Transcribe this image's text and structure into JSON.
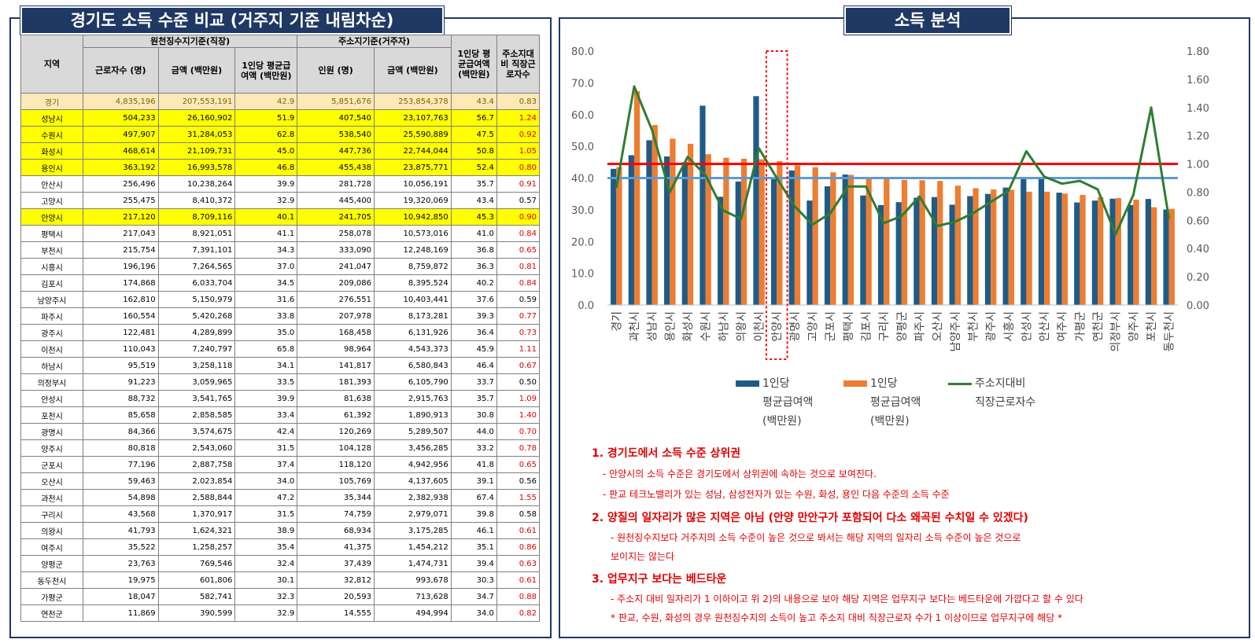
{
  "left": {
    "title": "경기도 소득 수준 비교 (거주지 기준 내림차순)",
    "headers": {
      "region": "지역",
      "group1": "원천징수지기준(직장)",
      "group2": "주소지기준(거주자)",
      "workers": "근로자수 (명)",
      "amount1": "금액 (백만원)",
      "avg1": "1인당 평균급여액 (백만원)",
      "people": "인원 (명)",
      "amount2": "금액 (백만원)",
      "avg2": "1인당 평균급여액 (백만원)",
      "ratio": "주소지대비 직장근로자수"
    },
    "rows": [
      {
        "r": "경기",
        "a": "4,835,196",
        "b": "207,553,191",
        "c": "42.9",
        "d": "5,851,676",
        "e": "253,854,378",
        "f": "43.4",
        "g": "0.83",
        "hl": "avg"
      },
      {
        "r": "성남시",
        "a": "504,233",
        "b": "26,160,902",
        "c": "51.9",
        "d": "407,540",
        "e": "23,107,763",
        "f": "56.7",
        "g": "1.24",
        "hl": "y"
      },
      {
        "r": "수원시",
        "a": "497,907",
        "b": "31,284,053",
        "c": "62.8",
        "d": "538,540",
        "e": "25,590,889",
        "f": "47.5",
        "g": "0.92",
        "hl": "y"
      },
      {
        "r": "화성시",
        "a": "468,614",
        "b": "21,109,731",
        "c": "45.0",
        "d": "447,736",
        "e": "22,744,044",
        "f": "50.8",
        "g": "1.05",
        "hl": "y"
      },
      {
        "r": "용인시",
        "a": "363,192",
        "b": "16,993,578",
        "c": "46.8",
        "d": "455,438",
        "e": "23,875,771",
        "f": "52.4",
        "g": "0.80",
        "hl": "y"
      },
      {
        "r": "안산시",
        "a": "256,496",
        "b": "10,238,264",
        "c": "39.9",
        "d": "281,728",
        "e": "10,056,191",
        "f": "35.7",
        "g": "0.91",
        "hl": ""
      },
      {
        "r": "고양시",
        "a": "255,475",
        "b": "8,410,372",
        "c": "32.9",
        "d": "445,400",
        "e": "19,320,069",
        "f": "43.4",
        "g": "0.57",
        "hl": ""
      },
      {
        "r": "안양시",
        "a": "217,120",
        "b": "8,709,116",
        "c": "40.1",
        "d": "241,705",
        "e": "10,942,850",
        "f": "45.3",
        "g": "0.90",
        "hl": "y"
      },
      {
        "r": "평택시",
        "a": "217,043",
        "b": "8,921,051",
        "c": "41.1",
        "d": "258,078",
        "e": "10,573,016",
        "f": "41.0",
        "g": "0.84",
        "hl": ""
      },
      {
        "r": "부천시",
        "a": "215,754",
        "b": "7,391,101",
        "c": "34.3",
        "d": "333,090",
        "e": "12,248,169",
        "f": "36.8",
        "g": "0.65",
        "hl": ""
      },
      {
        "r": "시흥시",
        "a": "196,196",
        "b": "7,264,565",
        "c": "37.0",
        "d": "241,047",
        "e": "8,759,872",
        "f": "36.3",
        "g": "0.81",
        "hl": ""
      },
      {
        "r": "김포시",
        "a": "174,868",
        "b": "6,033,704",
        "c": "34.5",
        "d": "209,086",
        "e": "8,395,524",
        "f": "40.2",
        "g": "0.84",
        "hl": ""
      },
      {
        "r": "남양주시",
        "a": "162,810",
        "b": "5,150,979",
        "c": "31.6",
        "d": "276,551",
        "e": "10,403,441",
        "f": "37.6",
        "g": "0.59",
        "hl": ""
      },
      {
        "r": "파주시",
        "a": "160,554",
        "b": "5,420,268",
        "c": "33.8",
        "d": "207,978",
        "e": "8,173,281",
        "f": "39.3",
        "g": "0.77",
        "hl": ""
      },
      {
        "r": "광주시",
        "a": "122,481",
        "b": "4,289,899",
        "c": "35.0",
        "d": "168,458",
        "e": "6,131,926",
        "f": "36.4",
        "g": "0.73",
        "hl": ""
      },
      {
        "r": "이천시",
        "a": "110,043",
        "b": "7,240,797",
        "c": "65.8",
        "d": "98,964",
        "e": "4,543,373",
        "f": "45.9",
        "g": "1.11",
        "hl": ""
      },
      {
        "r": "하남시",
        "a": "95,519",
        "b": "3,258,118",
        "c": "34.1",
        "d": "141,817",
        "e": "6,580,843",
        "f": "46.4",
        "g": "0.67",
        "hl": ""
      },
      {
        "r": "의정부시",
        "a": "91,223",
        "b": "3,059,965",
        "c": "33.5",
        "d": "181,393",
        "e": "6,105,790",
        "f": "33.7",
        "g": "0.50",
        "hl": ""
      },
      {
        "r": "안성시",
        "a": "88,732",
        "b": "3,541,765",
        "c": "39.9",
        "d": "81,638",
        "e": "2,915,763",
        "f": "35.7",
        "g": "1.09",
        "hl": ""
      },
      {
        "r": "포천시",
        "a": "85,658",
        "b": "2,858,585",
        "c": "33.4",
        "d": "61,392",
        "e": "1,890,913",
        "f": "30.8",
        "g": "1.40",
        "hl": ""
      },
      {
        "r": "광명시",
        "a": "84,366",
        "b": "3,574,675",
        "c": "42.4",
        "d": "120,269",
        "e": "5,289,507",
        "f": "44.0",
        "g": "0.70",
        "hl": ""
      },
      {
        "r": "양주시",
        "a": "80,818",
        "b": "2,543,060",
        "c": "31.5",
        "d": "104,128",
        "e": "3,456,285",
        "f": "33.2",
        "g": "0.78",
        "hl": ""
      },
      {
        "r": "군포시",
        "a": "77,196",
        "b": "2,887,758",
        "c": "37.4",
        "d": "118,120",
        "e": "4,942,956",
        "f": "41.8",
        "g": "0.65",
        "hl": ""
      },
      {
        "r": "오산시",
        "a": "59,463",
        "b": "2,023,854",
        "c": "34.0",
        "d": "105,769",
        "e": "4,137,605",
        "f": "39.1",
        "g": "0.56",
        "hl": ""
      },
      {
        "r": "과천시",
        "a": "54,898",
        "b": "2,588,844",
        "c": "47.2",
        "d": "35,344",
        "e": "2,382,938",
        "f": "67.4",
        "g": "1.55",
        "hl": ""
      },
      {
        "r": "구리시",
        "a": "43,568",
        "b": "1,370,917",
        "c": "31.5",
        "d": "74,759",
        "e": "2,979,071",
        "f": "39.8",
        "g": "0.58",
        "hl": ""
      },
      {
        "r": "의왕시",
        "a": "41,793",
        "b": "1,624,321",
        "c": "38.9",
        "d": "68,934",
        "e": "3,175,285",
        "f": "46.1",
        "g": "0.61",
        "hl": ""
      },
      {
        "r": "여주시",
        "a": "35,522",
        "b": "1,258,257",
        "c": "35.4",
        "d": "41,375",
        "e": "1,454,212",
        "f": "35.1",
        "g": "0.86",
        "hl": ""
      },
      {
        "r": "양평군",
        "a": "23,763",
        "b": "769,546",
        "c": "32.4",
        "d": "37,439",
        "e": "1,474,731",
        "f": "39.4",
        "g": "0.63",
        "hl": ""
      },
      {
        "r": "동두천시",
        "a": "19,975",
        "b": "601,806",
        "c": "30.1",
        "d": "32,812",
        "e": "993,678",
        "f": "30.3",
        "g": "0.61",
        "hl": ""
      },
      {
        "r": "가평군",
        "a": "18,047",
        "b": "582,741",
        "c": "32.3",
        "d": "20,593",
        "e": "713,628",
        "f": "34.7",
        "g": "0.88",
        "hl": ""
      },
      {
        "r": "연천군",
        "a": "11,869",
        "b": "390,599",
        "c": "32.9",
        "d": "14,555",
        "e": "494,994",
        "f": "34.0",
        "g": "0.82",
        "hl": ""
      }
    ]
  },
  "right": {
    "title": "소득 분석",
    "legend": {
      "bar1": [
        "1인당",
        "평균급여액",
        "(백만원)"
      ],
      "bar2": [
        "1인당",
        "평균급여액",
        "(백만원)"
      ],
      "line": [
        "주소지대비",
        "직장근로자수"
      ]
    },
    "notes": [
      {
        "type": "h",
        "text": "1. 경기도에서 소득 수준 상위권"
      },
      {
        "type": "l",
        "text": "- 안양시의 소득 수준은 경기도에서 상위권에 속하는 것으로 보여진다."
      },
      {
        "type": "l",
        "text": "- 판교 테크노밸리가 있는 성남, 삼성전자가 있는 수원, 화성, 용인 다음 수준의 소득 수준"
      },
      {
        "type": "h",
        "text": "2. 양질의 일자리가 많은 지역은 아님 (안양 만안구가 포함되어 다소 왜곡된 수치일 수 있겠다)"
      },
      {
        "type": "l2",
        "text": "- 원천징수지보다 거주지의 소득 수준이 높은 것으로 봐서는 해당 지역의 일자리 소득 수준이 높은 것으로"
      },
      {
        "type": "l2",
        "text": "보이지는 않는다"
      },
      {
        "type": "h",
        "text": "3. 업무지구 보다는 베드타운"
      },
      {
        "type": "l2",
        "text": "- 주소지 대비 일자리가 1 이하이고 위 2)의 내용으로 보아 해당 지역은 업무지구 보다는 베드타운에 가깝다고 할 수 있다"
      },
      {
        "type": "l2",
        "text": "* 판교, 수원, 화성의 경우 원천징수지의 소득이 높고 주소지 대비 직장근로자 수가 1 이상이므로 업무지구에 해당 *"
      }
    ]
  },
  "colors": {
    "bar1": "#1f5b86",
    "bar2": "#ed7d31",
    "line": "#2e7d32",
    "redline": "#ff0000",
    "blueline": "#5b9bd5",
    "header": "#1f3864"
  },
  "chart_data": {
    "type": "bar",
    "categories": [
      "경기",
      "과천시",
      "성남시",
      "용인시",
      "화성시",
      "수원시",
      "하남시",
      "의왕시",
      "이천시",
      "안양시",
      "광명시",
      "고양시",
      "군포시",
      "평택시",
      "김포시",
      "구리시",
      "양평군",
      "파주시",
      "오산시",
      "남양주시",
      "부천시",
      "광주시",
      "시흥시",
      "안성시",
      "안산시",
      "여주시",
      "가평군",
      "연천군",
      "의정부시",
      "양주시",
      "포천시",
      "동두천시"
    ],
    "series": [
      {
        "name": "1인당 평균급여액 (백만원)",
        "axis": "left",
        "values": [
          42.9,
          47.2,
          51.9,
          46.8,
          45.0,
          62.8,
          34.1,
          38.9,
          65.8,
          40.1,
          42.4,
          32.9,
          37.4,
          41.1,
          34.5,
          31.5,
          32.4,
          33.8,
          34.0,
          31.6,
          34.3,
          35.0,
          37.0,
          39.9,
          39.9,
          35.4,
          32.3,
          32.9,
          33.5,
          31.5,
          33.4,
          30.1
        ]
      },
      {
        "name": "1인당 평균급여액 (백만원)",
        "axis": "left",
        "values": [
          43.4,
          67.4,
          56.7,
          52.4,
          50.8,
          47.5,
          46.4,
          46.1,
          45.9,
          45.3,
          44.0,
          43.4,
          41.8,
          41.0,
          40.2,
          39.8,
          39.4,
          39.3,
          39.1,
          37.6,
          36.8,
          36.4,
          36.3,
          35.7,
          35.7,
          35.1,
          34.7,
          34.0,
          33.7,
          33.2,
          30.8,
          30.3
        ]
      },
      {
        "name": "주소지대비 직장근로자수",
        "axis": "right",
        "type": "line",
        "values": [
          0.83,
          1.55,
          1.24,
          0.8,
          1.05,
          0.92,
          0.67,
          0.61,
          1.11,
          0.9,
          0.7,
          0.57,
          0.65,
          0.84,
          0.84,
          0.58,
          0.63,
          0.77,
          0.56,
          0.59,
          0.65,
          0.73,
          0.81,
          1.09,
          0.91,
          0.86,
          0.88,
          0.82,
          0.5,
          0.78,
          1.4,
          0.61
        ]
      }
    ],
    "ylim": [
      0,
      80
    ],
    "y2lim": [
      0,
      1.8
    ],
    "yticks": [
      "0.0",
      "10.0",
      "20.0",
      "30.0",
      "40.0",
      "50.0",
      "60.0",
      "70.0",
      "80.0"
    ],
    "y2ticks": [
      "0.00",
      "0.20",
      "0.40",
      "0.60",
      "0.80",
      "1.00",
      "1.20",
      "1.40",
      "1.60",
      "1.80"
    ],
    "hlines": [
      {
        "axis": "right",
        "value": 1.0,
        "color": "red"
      },
      {
        "axis": "left",
        "value": 40,
        "color": "lightblue"
      }
    ],
    "highlight_category": "안양시",
    "grid": false,
    "legend_position": "bottom"
  }
}
